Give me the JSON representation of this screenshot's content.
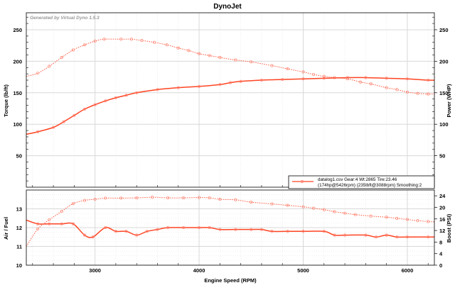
{
  "title": "DynoJet",
  "watermark": "Generated by Virtual Dyno 1.5.3",
  "legend": {
    "line1": "datalog1.csv Gear:4 Wt:2865 Tire:23.46",
    "line2": "(174hp@5426rpm) (235lbft@3088rpm) Smoothing:2"
  },
  "colors": {
    "solid": "#ff4422",
    "dotted": "#ff5a40",
    "grid": "#d8d8d8"
  },
  "chart_data": [
    {
      "type": "line",
      "name": "torque-power",
      "xlabel": "Engine Speed (RPM)",
      "ylabel": "Torque (lb/ft)",
      "y2label": "Power (WHP)",
      "xlim": [
        2340,
        6260
      ],
      "ylim": [
        0,
        277
      ],
      "y2lim": [
        0,
        277
      ],
      "yticks": [
        50,
        100,
        150,
        200,
        250
      ],
      "y2ticks": [
        50,
        100,
        150,
        200,
        250
      ],
      "xticks": [
        3000,
        4000,
        5000,
        6000
      ],
      "grid": true,
      "legend_position": "bottom-right",
      "series": [
        {
          "name": "Torque",
          "style": "dotted",
          "axis": "left",
          "x": [
            2340,
            2450,
            2560,
            2680,
            2790,
            2900,
            3000,
            3088,
            3250,
            3350,
            3450,
            3570,
            3690,
            3800,
            3900,
            4000,
            4100,
            4200,
            4350,
            4500,
            4700,
            4850,
            5000,
            5100,
            5200,
            5300,
            5426,
            5550,
            5650,
            5800,
            5900,
            6000,
            6100,
            6200,
            6260
          ],
          "y": [
            176,
            181,
            192,
            206,
            218,
            226,
            232,
            235,
            235,
            235,
            233,
            230,
            226,
            221,
            217,
            212,
            209,
            206,
            202,
            199,
            193,
            188,
            183,
            179,
            176,
            174,
            172,
            167,
            164,
            158,
            155,
            151,
            149,
            148,
            148
          ]
        },
        {
          "name": "Power",
          "style": "solid",
          "axis": "right",
          "x": [
            2340,
            2450,
            2600,
            2700,
            2800,
            2900,
            3000,
            3100,
            3200,
            3300,
            3400,
            3600,
            3800,
            4000,
            4200,
            4300,
            4400,
            4600,
            4800,
            5000,
            5200,
            5426,
            5600,
            5800,
            6000,
            6200,
            6260
          ],
          "y": [
            84,
            88,
            95,
            104,
            114,
            124,
            131,
            137,
            142,
            146,
            150,
            155,
            158,
            160,
            163,
            166,
            168,
            170,
            171,
            172,
            173,
            174,
            174,
            173,
            172,
            170,
            170
          ]
        }
      ]
    },
    {
      "type": "line",
      "name": "afr-boost",
      "xlabel": "Engine Speed (RPM)",
      "ylabel": "Air / Fuel",
      "y2label": "Boost (PSI)",
      "xlim": [
        2340,
        6260
      ],
      "ylim": [
        10,
        14
      ],
      "y2lim": [
        0,
        26
      ],
      "yticks": [
        10,
        11,
        12,
        13
      ],
      "y2ticks": [
        0,
        4,
        8,
        12,
        16,
        20,
        24
      ],
      "xticks": [
        3000,
        4000,
        5000,
        6000
      ],
      "xticklabels": [
        "3000",
        "4000",
        "5000",
        "6000"
      ],
      "grid": true,
      "series": [
        {
          "name": "Air / Fuel",
          "style": "solid",
          "axis": "left",
          "x": [
            2340,
            2450,
            2560,
            2680,
            2790,
            2900,
            2980,
            3100,
            3200,
            3300,
            3400,
            3500,
            3600,
            3700,
            3850,
            4000,
            4100,
            4200,
            4350,
            4500,
            4600,
            4700,
            4850,
            5000,
            5200,
            5300,
            5400,
            5600,
            5700,
            5800,
            5900,
            6000,
            6200,
            6260
          ],
          "y": [
            12.4,
            12.2,
            12.2,
            12.2,
            12.2,
            11.6,
            11.5,
            12.0,
            11.8,
            11.8,
            11.6,
            11.8,
            11.9,
            12.0,
            12.0,
            12.0,
            12.0,
            11.9,
            11.9,
            11.9,
            11.9,
            11.8,
            11.8,
            11.8,
            11.8,
            11.6,
            11.6,
            11.6,
            11.5,
            11.6,
            11.5,
            11.5,
            11.5,
            11.5
          ]
        },
        {
          "name": "Boost",
          "style": "dotted",
          "axis": "right",
          "x": [
            2340,
            2450,
            2560,
            2680,
            2790,
            2900,
            3000,
            3100,
            3250,
            3400,
            3550,
            3700,
            3850,
            4000,
            4100,
            4200,
            4350,
            4500,
            4700,
            4850,
            5000,
            5100,
            5200,
            5300,
            5400,
            5500,
            5650,
            5800,
            5900,
            6000,
            6100,
            6200,
            6260
          ],
          "y": [
            6.5,
            12.5,
            15.7,
            18.6,
            21.3,
            22.4,
            22.8,
            23.2,
            23.2,
            23.3,
            23.5,
            23.3,
            23.3,
            23.4,
            23.3,
            22.8,
            22.6,
            21.8,
            21.2,
            20.7,
            20.2,
            19.7,
            19.2,
            18.5,
            18.0,
            17.5,
            17.0,
            16.6,
            16.2,
            15.8,
            15.4,
            15.1,
            15.0
          ]
        }
      ]
    }
  ]
}
